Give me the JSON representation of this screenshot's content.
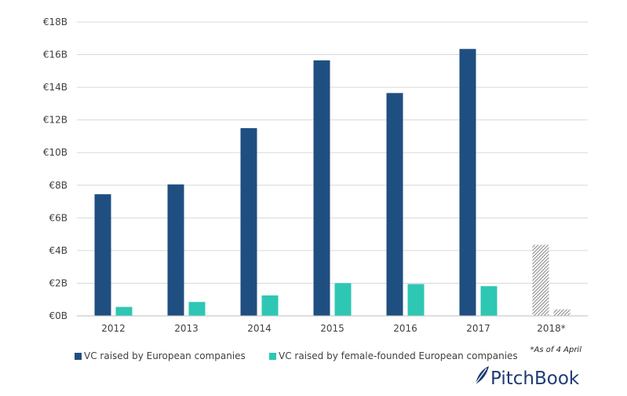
{
  "chart_data": {
    "type": "bar",
    "categories": [
      "2012",
      "2013",
      "2014",
      "2015",
      "2016",
      "2017",
      "2018*"
    ],
    "series": [
      {
        "name": "VC raised by European companies",
        "values": [
          7.45,
          8.05,
          11.5,
          15.65,
          13.65,
          16.35,
          4.35
        ],
        "color": "#1f4e80"
      },
      {
        "name": "VC raised by female-founded European companies",
        "values": [
          0.55,
          0.85,
          1.25,
          2.0,
          1.95,
          1.82,
          0.4
        ],
        "color": "#2ec7b4"
      }
    ],
    "partial_category": "2018*",
    "y_tick_labels": [
      "€0B",
      "€2B",
      "€4B",
      "€6B",
      "€8B",
      "€10B",
      "€12B",
      "€14B",
      "€16B",
      "€18B"
    ],
    "ylim": [
      0,
      18
    ],
    "grid": true,
    "legend_position": "bottom-left",
    "footnote": "*As of 4 April",
    "brand": "PitchBook",
    "title": "",
    "xlabel": "",
    "ylabel": ""
  }
}
